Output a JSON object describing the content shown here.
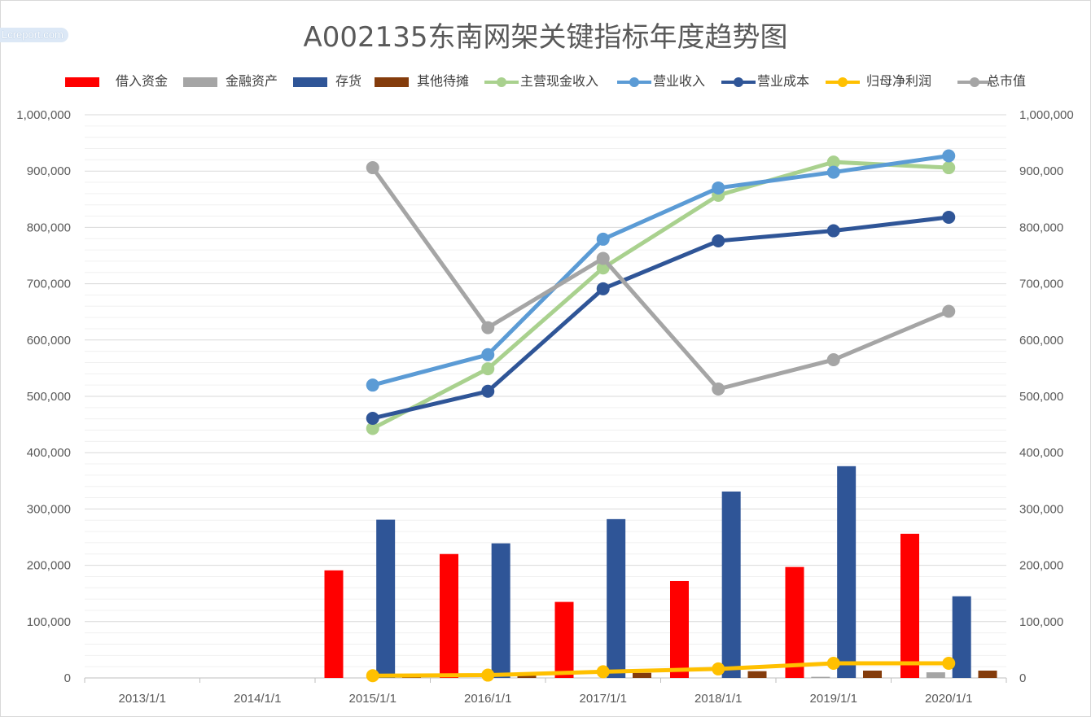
{
  "watermark": "Lcreport.com",
  "chart_data": {
    "type": "bar",
    "title": "A002135东南网架关键指标年度趋势图",
    "categories": [
      "2013/1/1",
      "2014/1/1",
      "2015/1/1",
      "2016/1/1",
      "2017/1/1",
      "2018/1/1",
      "2019/1/1",
      "2020/1/1"
    ],
    "ylim": [
      0,
      1000000
    ],
    "y_ticks": [
      "0",
      "100,000",
      "200,000",
      "300,000",
      "400,000",
      "500,000",
      "600,000",
      "700,000",
      "800,000",
      "900,000",
      "1,000,000"
    ],
    "grid": true,
    "legend_position": "top",
    "bar_series": [
      {
        "name": "借入资金",
        "color": "#ff0000",
        "values": [
          null,
          null,
          191000,
          220000,
          135000,
          172000,
          197000,
          256000
        ]
      },
      {
        "name": "金融资产",
        "color": "#a5a5a5",
        "values": [
          null,
          null,
          0,
          0,
          0,
          0,
          2000,
          10000
        ]
      },
      {
        "name": "存货",
        "color": "#2f5597",
        "values": [
          null,
          null,
          281000,
          239000,
          282000,
          331000,
          376000,
          145000
        ]
      },
      {
        "name": "其他待摊",
        "color": "#843c0c",
        "values": [
          null,
          null,
          2000,
          5000,
          9000,
          12000,
          13000,
          13000
        ]
      }
    ],
    "line_series": [
      {
        "name": "主营现金收入",
        "color": "#a9d18e",
        "values": [
          null,
          null,
          443000,
          549000,
          728000,
          857000,
          916000,
          906000
        ]
      },
      {
        "name": "营业收入",
        "color": "#5b9bd5",
        "values": [
          null,
          null,
          520000,
          574000,
          779000,
          870000,
          898000,
          927000
        ]
      },
      {
        "name": "营业成本",
        "color": "#2f5597",
        "values": [
          null,
          null,
          461000,
          509000,
          691000,
          776000,
          794000,
          818000
        ]
      },
      {
        "name": "归母净利润",
        "color": "#ffc000",
        "values": [
          null,
          null,
          4000,
          5000,
          11000,
          16000,
          26000,
          26000
        ]
      },
      {
        "name": "总市值",
        "color": "#a5a5a5",
        "values": [
          null,
          null,
          906000,
          622000,
          745000,
          513000,
          565000,
          651000
        ]
      }
    ]
  }
}
